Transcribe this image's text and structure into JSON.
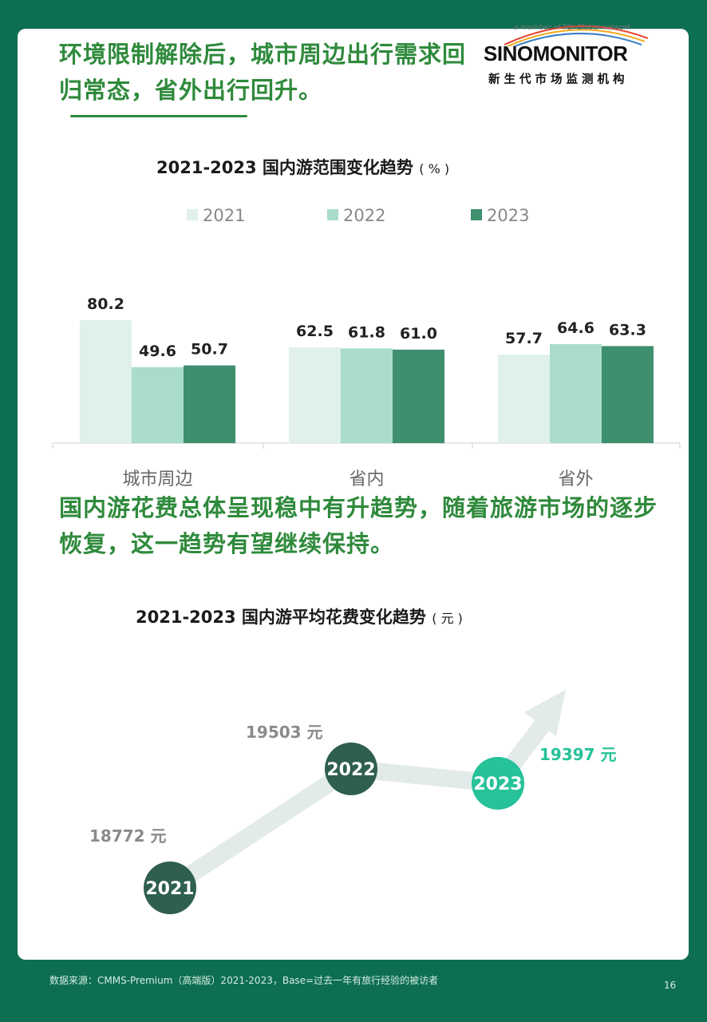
{
  "headline1": "环境限制解除后，城市周边出行需求回归常态，省外出行回升。",
  "headline2": "国内游花费总体呈现稳中有升趋势，随着旅游市场的逐步恢复，这一趋势有望继续保持。",
  "logo": {
    "member_text": "a member of TGI Global network",
    "brand": "SINOMONITOR",
    "brand_cn": "新生代市场监测机构"
  },
  "chart1_title": {
    "main": "2021-2023 国内游范围变化趋势",
    "unit": "( % )"
  },
  "chart2_title": {
    "main": "2021-2023 国内游平均花费变化趋势",
    "unit": "( 元 )"
  },
  "footer": "数据来源：CMMS-Premium（高端版）2021-2023，Base=过去一年有旅行经验的被访者",
  "page_number": "16",
  "colors": {
    "y2021": "#dff1ea",
    "y2022": "#a9dccb",
    "y2023": "#3e8f6e",
    "accent": "#2f8a3c",
    "bg": "#0e6e52",
    "teal": "#26c29a"
  },
  "chart_data": [
    {
      "type": "bar",
      "title": "2021-2023 国内游范围变化趋势",
      "unit": "%",
      "categories": [
        "城市周边",
        "省内",
        "省外"
      ],
      "series": [
        {
          "name": "2021",
          "values": [
            80.2,
            62.5,
            57.7
          ]
        },
        {
          "name": "2022",
          "values": [
            49.6,
            61.8,
            64.6
          ]
        },
        {
          "name": "2023",
          "values": [
            50.7,
            61.0,
            63.3
          ]
        }
      ],
      "value_labels": [
        [
          "80.2",
          "62.5",
          "57.7"
        ],
        [
          "49.6",
          "61.8",
          "64.6"
        ],
        [
          "50.7",
          "61.0",
          "63.3"
        ]
      ],
      "ylim": [
        0,
        100
      ],
      "grid": false,
      "legend": "top-center"
    },
    {
      "type": "line",
      "title": "2021-2023 国内游平均花费变化趋势",
      "unit": "元",
      "x": [
        "2021",
        "2022",
        "2023"
      ],
      "values": [
        18772,
        19503,
        19397
      ],
      "value_labels": [
        "18772 元",
        "19503 元",
        "19397 元"
      ],
      "grid": false
    }
  ]
}
